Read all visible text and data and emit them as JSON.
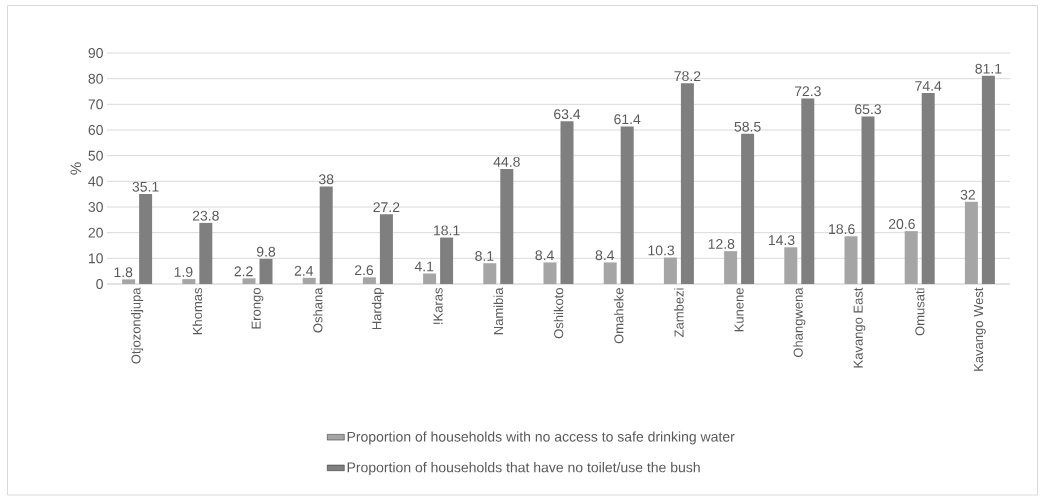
{
  "chart_data": {
    "type": "bar",
    "ylabel": "%",
    "categories": [
      "Otjozondjupa",
      "Khomas",
      "Erongo",
      "Oshana",
      "Hardap",
      "!Karas",
      "Namibia",
      "Oshikoto",
      "Omaheke",
      "Zambezi",
      "Kunene",
      "Ohangwena",
      "Kavango East",
      "Omusati",
      "Kavango West"
    ],
    "series": [
      {
        "name": "Proportion of households with no access to safe drinking water",
        "color": "#a5a5a5",
        "values": [
          1.8,
          1.9,
          2.2,
          2.4,
          2.6,
          4.1,
          8.1,
          8.4,
          8.4,
          10.3,
          12.8,
          14.3,
          18.6,
          20.6,
          32
        ]
      },
      {
        "name": "Proportion of households that have no toilet/use the bush",
        "color": "#7f7f7f",
        "values": [
          35.1,
          23.8,
          9.8,
          38,
          27.2,
          18.1,
          44.8,
          63.4,
          61.4,
          78.2,
          58.5,
          72.3,
          65.3,
          74.4,
          81.1
        ]
      }
    ],
    "ylim": [
      0,
      90
    ],
    "yticks": [
      0,
      10,
      20,
      30,
      40,
      50,
      60,
      70,
      80,
      90
    ],
    "grid": "y",
    "legend": "bottom",
    "data_labels": true
  }
}
